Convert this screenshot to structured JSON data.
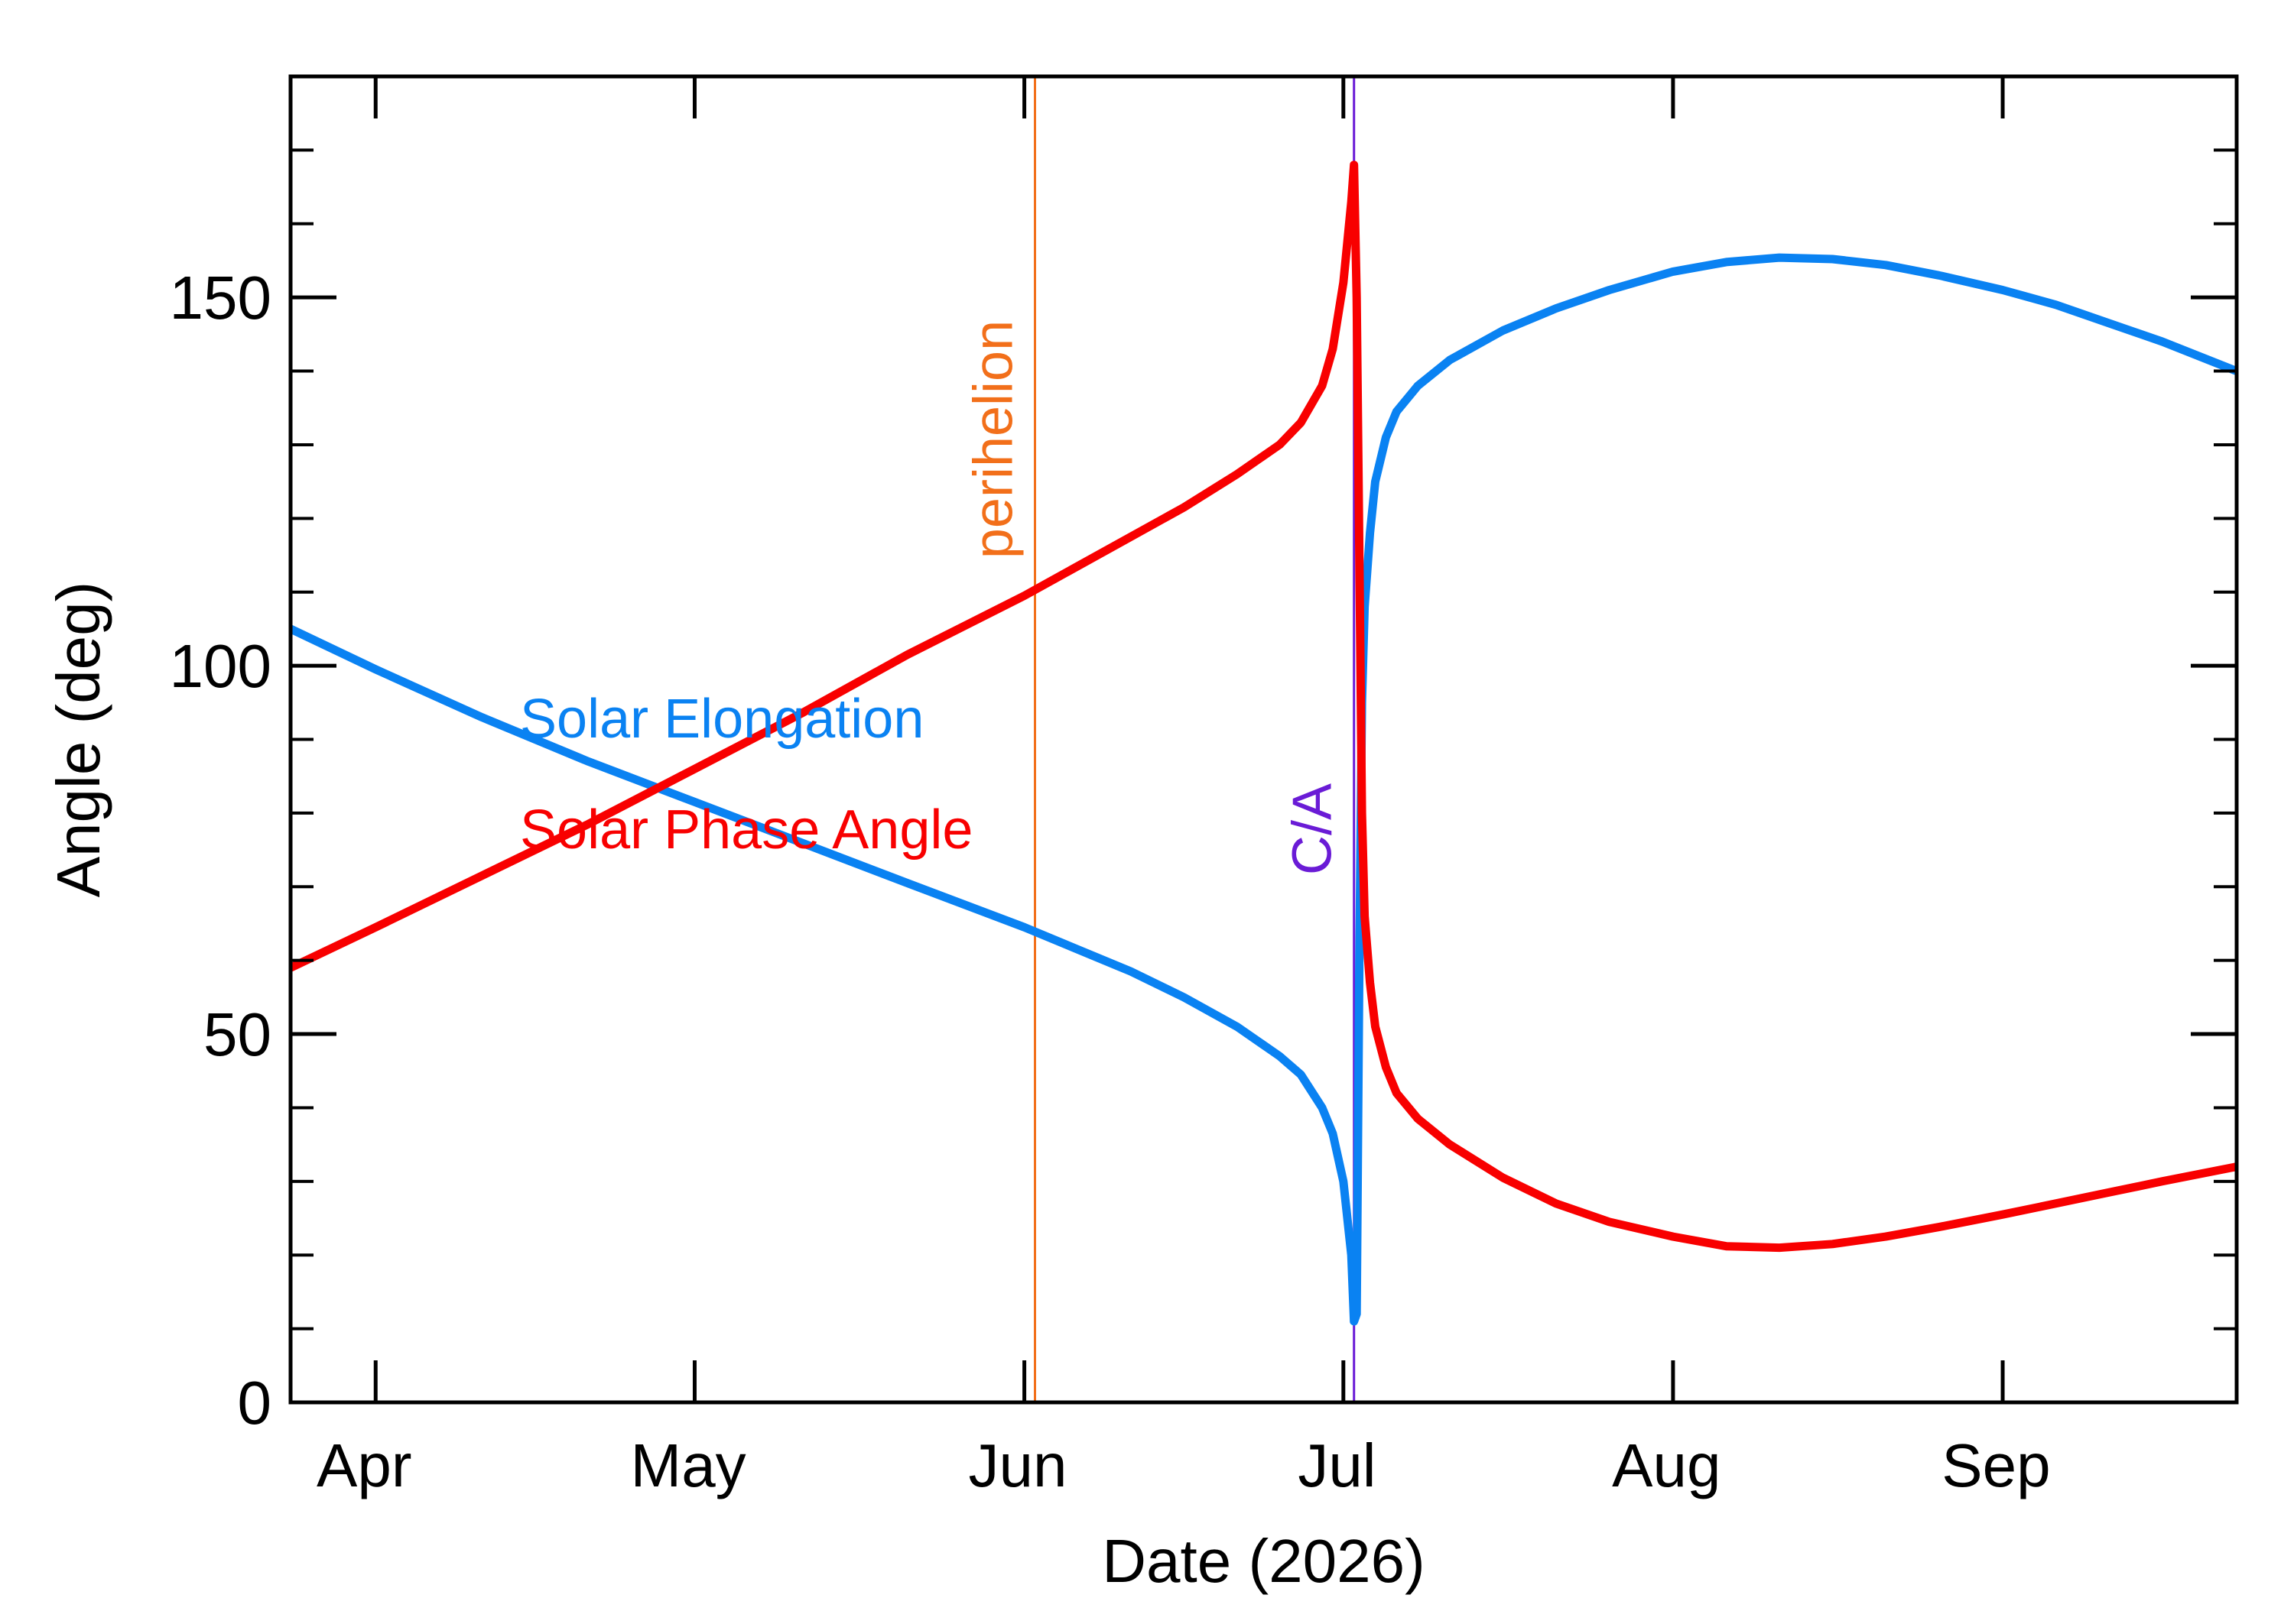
{
  "chart_data": {
    "type": "line",
    "xlabel": "Date (2026)",
    "ylabel": "Angle (deg)",
    "xlim": [
      "2026-03-24",
      "2026-09-23"
    ],
    "ylim": [
      0,
      180
    ],
    "x_ticks": [
      {
        "date": "2026-04-01",
        "label": "Apr"
      },
      {
        "date": "2026-05-01",
        "label": "May"
      },
      {
        "date": "2026-06-01",
        "label": "Jun"
      },
      {
        "date": "2026-07-01",
        "label": "Jul"
      },
      {
        "date": "2026-08-01",
        "label": "Aug"
      },
      {
        "date": "2026-09-01",
        "label": "Sep"
      }
    ],
    "y_ticks": [
      {
        "value": 0,
        "label": "0"
      },
      {
        "value": 50,
        "label": "50"
      },
      {
        "value": 100,
        "label": "100"
      },
      {
        "value": 150,
        "label": "150"
      }
    ],
    "grid": false,
    "series": [
      {
        "name": "Solar Elongation",
        "color": "#0a82f2",
        "points": [
          [
            "2026-03-24",
            105
          ],
          [
            "2026-04-01",
            99.5
          ],
          [
            "2026-04-11",
            93
          ],
          [
            "2026-04-21",
            87
          ],
          [
            "2026-05-01",
            81.5
          ],
          [
            "2026-05-11",
            76
          ],
          [
            "2026-05-21",
            70.5
          ],
          [
            "2026-06-01",
            64.5
          ],
          [
            "2026-06-11",
            58.5
          ],
          [
            "2026-06-16",
            55
          ],
          [
            "2026-06-21",
            51
          ],
          [
            "2026-06-25",
            47
          ],
          [
            "2026-06-27",
            44.5
          ],
          [
            "2026-06-29",
            40
          ],
          [
            "2026-06-30",
            36.5
          ],
          [
            "2026-07-01",
            30
          ],
          [
            "2026-07-01 18:00",
            20
          ],
          [
            "2026-07-02",
            11
          ],
          [
            "2026-07-02 06:00",
            12
          ],
          [
            "2026-07-02 12:00",
            60
          ],
          [
            "2026-07-02 18:00",
            95
          ],
          [
            "2026-07-03",
            108
          ],
          [
            "2026-07-03 12:00",
            118
          ],
          [
            "2026-07-04",
            125
          ],
          [
            "2026-07-05",
            131
          ],
          [
            "2026-07-06",
            134.5
          ],
          [
            "2026-07-08",
            138
          ],
          [
            "2026-07-11",
            141.5
          ],
          [
            "2026-07-16",
            145.5
          ],
          [
            "2026-07-21",
            148.5
          ],
          [
            "2026-07-26",
            151
          ],
          [
            "2026-08-01",
            153.5
          ],
          [
            "2026-08-06",
            154.8
          ],
          [
            "2026-08-11",
            155.4
          ],
          [
            "2026-08-16",
            155.2
          ],
          [
            "2026-08-21",
            154.4
          ],
          [
            "2026-08-26",
            153
          ],
          [
            "2026-09-01",
            151
          ],
          [
            "2026-09-06",
            149
          ],
          [
            "2026-09-11",
            146.5
          ],
          [
            "2026-09-16",
            144
          ],
          [
            "2026-09-23",
            140
          ]
        ]
      },
      {
        "name": "Solar Phase Angle",
        "color": "#f80000",
        "points": [
          [
            "2026-03-24",
            59
          ],
          [
            "2026-04-01",
            64.5
          ],
          [
            "2026-04-11",
            71.5
          ],
          [
            "2026-04-21",
            78.5
          ],
          [
            "2026-05-01",
            86
          ],
          [
            "2026-05-11",
            93.5
          ],
          [
            "2026-05-21",
            101.5
          ],
          [
            "2026-06-01",
            109.5
          ],
          [
            "2026-06-11",
            117.5
          ],
          [
            "2026-06-16",
            121.5
          ],
          [
            "2026-06-21",
            126
          ],
          [
            "2026-06-25",
            130
          ],
          [
            "2026-06-27",
            133
          ],
          [
            "2026-06-29",
            138
          ],
          [
            "2026-06-30",
            143
          ],
          [
            "2026-07-01",
            152
          ],
          [
            "2026-07-01 18:00",
            163
          ],
          [
            "2026-07-02",
            168
          ],
          [
            "2026-07-02 06:00",
            150
          ],
          [
            "2026-07-02 12:00",
            115
          ],
          [
            "2026-07-02 18:00",
            80
          ],
          [
            "2026-07-03",
            66
          ],
          [
            "2026-07-03 12:00",
            57
          ],
          [
            "2026-07-04",
            51
          ],
          [
            "2026-07-05",
            45.5
          ],
          [
            "2026-07-06",
            42
          ],
          [
            "2026-07-08",
            38.5
          ],
          [
            "2026-07-11",
            35
          ],
          [
            "2026-07-16",
            30.5
          ],
          [
            "2026-07-21",
            27
          ],
          [
            "2026-07-26",
            24.5
          ],
          [
            "2026-08-01",
            22.5
          ],
          [
            "2026-08-06",
            21.2
          ],
          [
            "2026-08-11",
            21
          ],
          [
            "2026-08-16",
            21.5
          ],
          [
            "2026-08-21",
            22.5
          ],
          [
            "2026-08-26",
            23.8
          ],
          [
            "2026-09-01",
            25.5
          ],
          [
            "2026-09-06",
            27
          ],
          [
            "2026-09-11",
            28.5
          ],
          [
            "2026-09-16",
            30
          ],
          [
            "2026-09-23",
            32
          ]
        ]
      }
    ],
    "markers": [
      {
        "label": "perihelion",
        "date": "2026-06-02",
        "color": "#f26f1a"
      },
      {
        "label": "C/A",
        "date": "2026-07-02",
        "color": "#6a1bd6"
      }
    ]
  }
}
